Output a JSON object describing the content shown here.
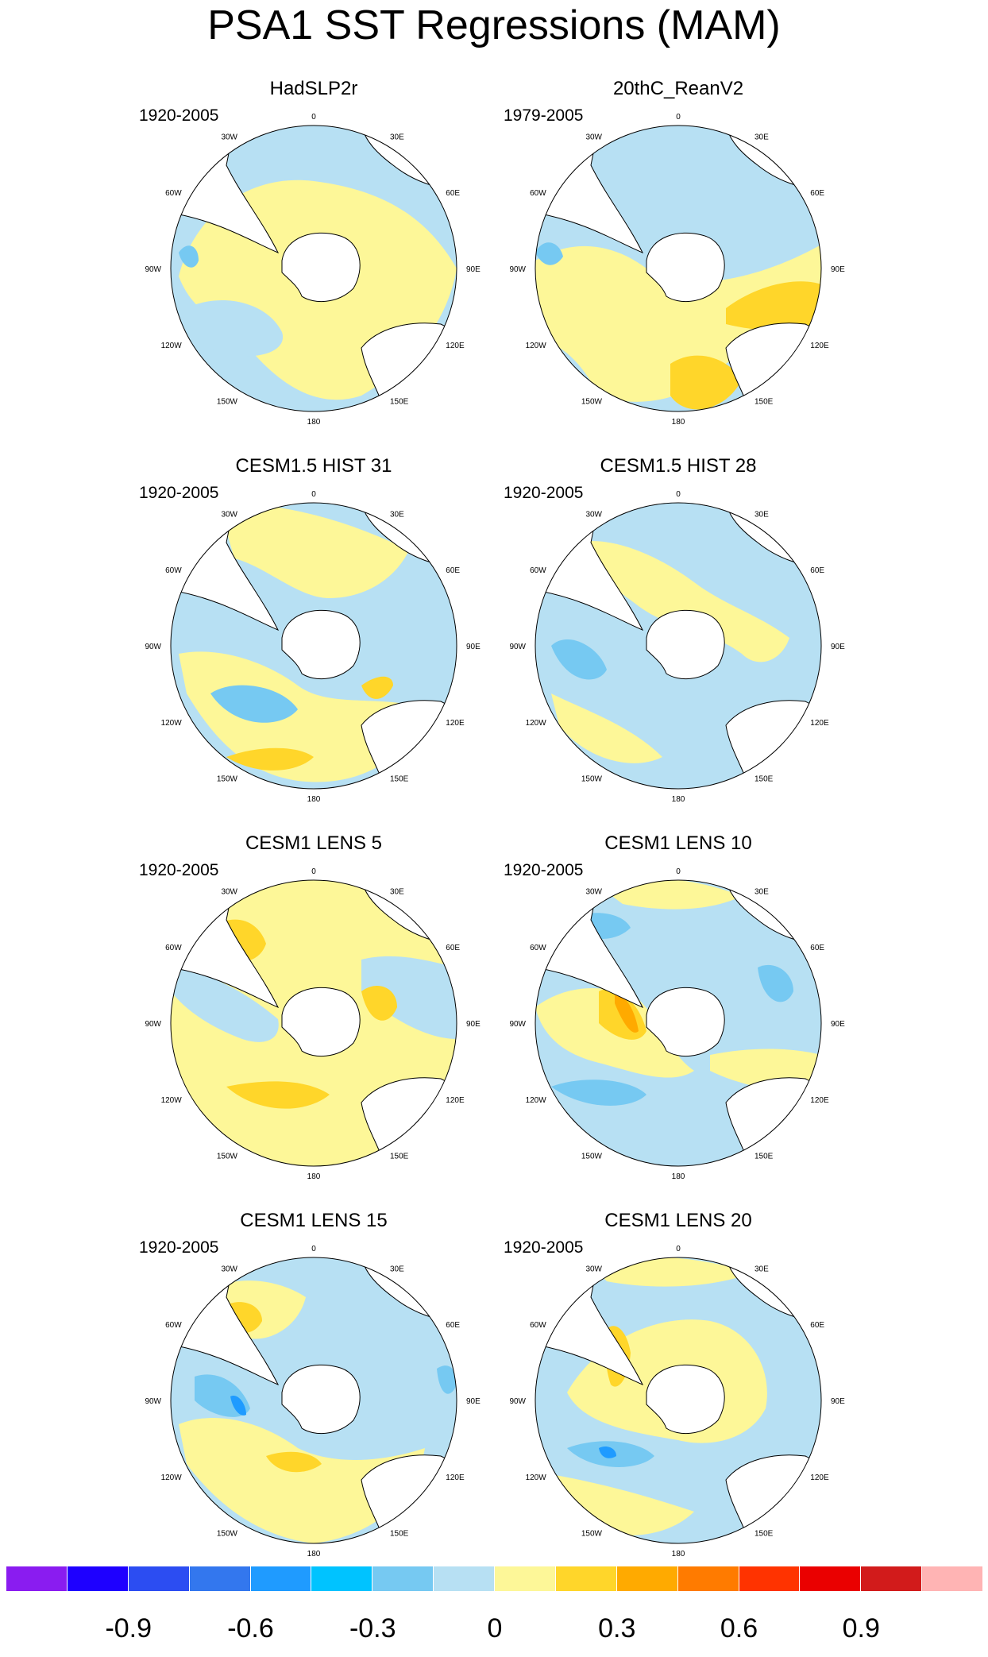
{
  "title": "PSA1 SST Regressions (MAM)",
  "ring_labels": [
    "0",
    "30E",
    "60E",
    "90E",
    "120E",
    "150E",
    "180",
    "150W",
    "120W",
    "90W",
    "60W",
    "30W"
  ],
  "panels": [
    {
      "title": "HadSLP2r",
      "period": "1920-2005"
    },
    {
      "title": "20thC_ReanV2",
      "period": "1979-2005"
    },
    {
      "title": "CESM1.5 HIST 31",
      "period": "1920-2005"
    },
    {
      "title": "CESM1.5 HIST 28",
      "period": "1920-2005"
    },
    {
      "title": "CESM1 LENS 5",
      "period": "1920-2005"
    },
    {
      "title": "CESM1 LENS 10",
      "period": "1920-2005"
    },
    {
      "title": "CESM1 LENS 15",
      "period": "1920-2005"
    },
    {
      "title": "CESM1 LENS 20",
      "period": "1920-2005"
    }
  ],
  "colorbar": {
    "colors": [
      "#8a1cf0",
      "#1e00ff",
      "#2c4df2",
      "#3377ee",
      "#1f9bff",
      "#00c3ff",
      "#76c9f2",
      "#b7e0f3",
      "#fdf798",
      "#ffd62a",
      "#ffaa00",
      "#ff7b00",
      "#ff3300",
      "#ea0000",
      "#d21b1b",
      "#ffb4b4"
    ],
    "labels": [
      "-0.9",
      "-0.6",
      "-0.3",
      "0",
      "0.3",
      "0.6",
      "0.9"
    ]
  },
  "palette": {
    "neg1": "#b7e0f3",
    "neg2": "#76c9f2",
    "neg3": "#1f9bff",
    "pos1": "#fdf798",
    "pos2": "#ffd62a",
    "pos3": "#ffaa00",
    "land": "#ffffff"
  }
}
